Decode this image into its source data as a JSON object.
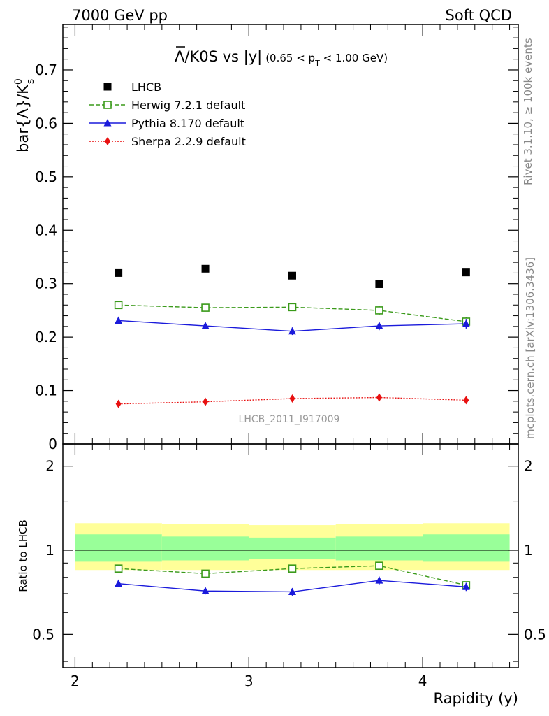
{
  "header": {
    "left": "7000 GeV pp",
    "right": "Soft QCD"
  },
  "side_labels": {
    "right_top": "Rivet 3.1.10, ≥ 100k events",
    "right_bottom": "mcplots.cern.ch [arXiv:1306.3436]"
  },
  "watermark": "LHCB_2011_I917009",
  "colors": {
    "data": "#000000",
    "herwig": "#3a9a1a",
    "pythia": "#1a1adb",
    "sherpa": "#e81010",
    "band_outer": "#ffff99",
    "band_inner": "#99ff99"
  },
  "chart_data": [
    {
      "type": "scatter",
      "panel": "main",
      "title_main": "Λ/K0S vs |y|",
      "title_cut": "(0.65 < p",
      "title_cut_sub": "T",
      "title_cut_end": " < 1.00 GeV)",
      "ylabel": "bar{Λ}/K",
      "ylabel_sup": "0",
      "ylabel_sub": "s",
      "xlabel": "",
      "xlim": [
        1.93,
        4.55
      ],
      "ylim": [
        0,
        0.785
      ],
      "yticks": [
        0,
        0.1,
        0.2,
        0.3,
        0.4,
        0.5,
        0.6,
        0.7
      ],
      "ytick_labels": [
        "0",
        "0.1",
        "0.2",
        "0.3",
        "0.4",
        "0.5",
        "0.6",
        "0.7"
      ],
      "legend_position": "top-left",
      "x": [
        2.25,
        2.75,
        3.25,
        3.75,
        4.25
      ],
      "series": [
        {
          "key": "data",
          "name": "LHCB",
          "marker": "square",
          "line": "none",
          "values": [
            0.32,
            0.328,
            0.315,
            0.299,
            0.321
          ],
          "errors": [
            0.003,
            0.003,
            0.003,
            0.003,
            0.003
          ]
        },
        {
          "key": "herwig",
          "name": "Herwig 7.2.1 default",
          "marker": "open-square",
          "line": "dashed",
          "values": [
            0.26,
            0.255,
            0.256,
            0.25,
            0.229
          ],
          "errors": [
            0.004,
            0.005,
            0.006,
            0.008,
            0.008
          ]
        },
        {
          "key": "pythia",
          "name": "Pythia 8.170 default",
          "marker": "triangle",
          "line": "solid",
          "values": [
            0.231,
            0.221,
            0.211,
            0.221,
            0.225
          ],
          "errors": [
            0.005,
            0.006,
            0.007,
            0.008,
            0.009
          ]
        },
        {
          "key": "sherpa",
          "name": "Sherpa 2.2.9 default",
          "marker": "diamond",
          "line": "dotted",
          "values": [
            0.075,
            0.079,
            0.085,
            0.087,
            0.082
          ],
          "errors": [
            0.001,
            0.001,
            0.001,
            0.001,
            0.001
          ]
        }
      ]
    },
    {
      "type": "line",
      "panel": "ratio",
      "ylabel": "Ratio to LHCB",
      "xlabel": "Rapidity (y)",
      "xlim": [
        1.93,
        4.55
      ],
      "ylim": [
        0.38,
        2.4
      ],
      "log_y": true,
      "yticks": [
        0.5,
        1,
        2
      ],
      "ytick_labels": [
        "0.5",
        "1",
        "2"
      ],
      "xticks": [
        2,
        3,
        4
      ],
      "xtick_labels": [
        "2",
        "3",
        "4"
      ],
      "bin_edges": [
        2.0,
        2.5,
        3.0,
        3.5,
        4.0,
        4.5
      ],
      "band_outer": {
        "low": [
          0.85,
          0.85,
          0.85,
          0.85,
          0.85
        ],
        "high": [
          1.25,
          1.24,
          1.23,
          1.24,
          1.25
        ]
      },
      "band_inner": {
        "low": [
          0.91,
          0.92,
          0.93,
          0.92,
          0.91
        ],
        "high": [
          1.14,
          1.12,
          1.11,
          1.12,
          1.14
        ]
      },
      "x": [
        2.25,
        2.75,
        3.25,
        3.75,
        4.25
      ],
      "series": [
        {
          "key": "herwig",
          "name": "Herwig 7.2.1 default",
          "values": [
            0.86,
            0.825,
            0.86,
            0.88,
            0.75
          ],
          "errors": [
            0.012,
            0.015,
            0.018,
            0.022,
            0.02
          ]
        },
        {
          "key": "pythia",
          "name": "Pythia 8.170 default",
          "values": [
            0.76,
            0.715,
            0.71,
            0.78,
            0.74
          ],
          "errors": [
            0.018,
            0.02,
            0.022,
            0.025,
            0.025
          ]
        }
      ]
    }
  ]
}
